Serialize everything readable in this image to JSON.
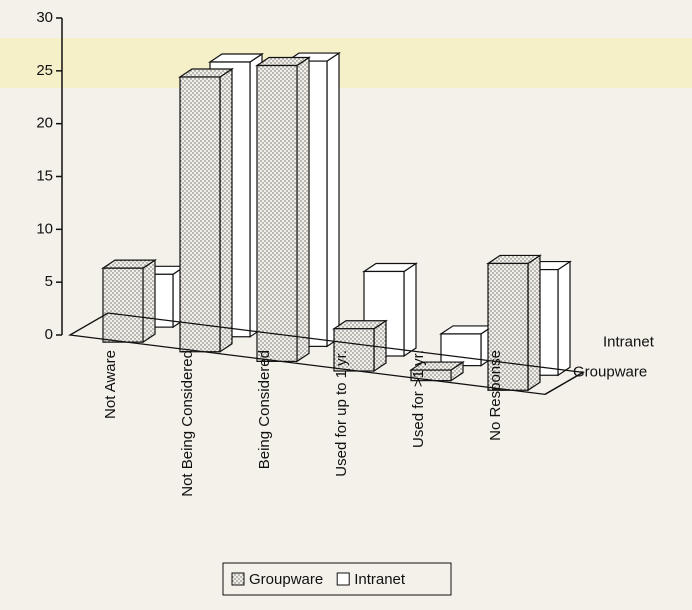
{
  "chart_data": {
    "type": "bar3d",
    "categories": [
      "Not Aware",
      "Not Being Considered",
      "Being Considered",
      "Used for up to 1 yr.",
      "Used for >1 yr.",
      "No Response"
    ],
    "series": [
      {
        "name": "Groupware",
        "color": "#e8e4dc",
        "pattern": "dots",
        "values": [
          7,
          26,
          28,
          4,
          1,
          12
        ]
      },
      {
        "name": "Intranet",
        "color": "#ffffff",
        "values": [
          5,
          26,
          27,
          8,
          3,
          10
        ]
      }
    ],
    "ylim": [
      0,
      30
    ],
    "yticks": [
      0,
      5,
      10,
      15,
      20,
      25,
      30
    ],
    "legend": "bottom"
  }
}
